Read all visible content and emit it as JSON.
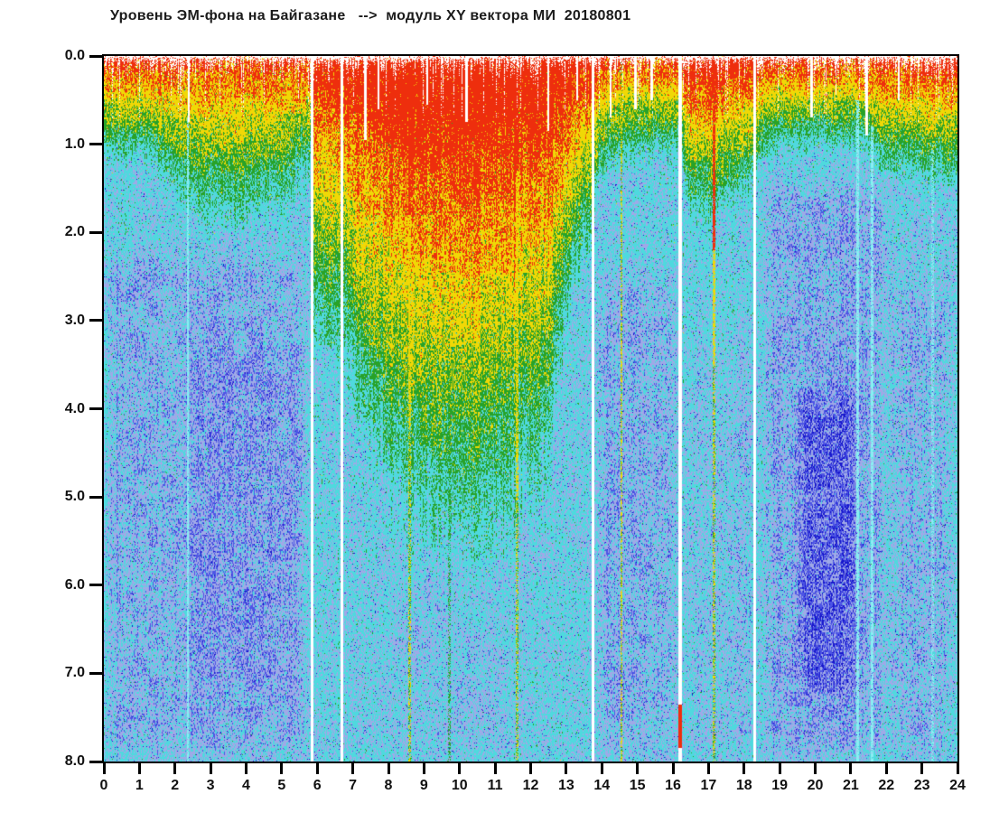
{
  "page": {
    "background": "#ffffff"
  },
  "chart_data": {
    "type": "heatmap",
    "subtype": "spectrogram-scatter",
    "title": "Уровень ЭМ-фона на Байгазане   -->  модуль XY вектора МИ  20180801",
    "xlim": [
      0,
      24
    ],
    "ylim_top": 0.0,
    "ylim_bottom": 8.0,
    "x_ticks": [
      "0",
      "1",
      "2",
      "3",
      "4",
      "5",
      "6",
      "7",
      "8",
      "9",
      "10",
      "11",
      "12",
      "13",
      "14",
      "15",
      "16",
      "17",
      "18",
      "19",
      "20",
      "21",
      "22",
      "23",
      "24"
    ],
    "y_ticks": [
      "0.0",
      "1.0",
      "2.0",
      "3.0",
      "4.0",
      "5.0",
      "6.0",
      "7.0",
      "8.0"
    ],
    "grid": false,
    "legend": "none",
    "palette": {
      "red": "#ee2e0d",
      "yellow": "#f0d806",
      "green": "#28a228",
      "cyan": "#4fd9de",
      "pale_blue": "#9fa9e7",
      "blue": "#4d55e5",
      "dark_blue": "#1717cc",
      "streak_cyan": "#8aeef2",
      "gap_white": "#ffffff"
    },
    "thresholds": {
      "red": 0.8,
      "yellow": 0.62,
      "green": 0.48,
      "cyan": 0.315,
      "pale_blue": 0.2,
      "blue": 0.12
    },
    "background_level": 0.35,
    "activity_profile": {
      "hours": [
        0,
        1,
        2,
        2.6,
        4,
        5.3,
        5.8,
        5.9,
        6.7,
        6.8,
        7.5,
        8.5,
        9.5,
        10.5,
        11.5,
        12.5,
        13.2,
        13.7,
        13.9,
        14.5,
        15.2,
        16.2,
        16.4,
        17.0,
        17.6,
        18.3,
        18.5,
        19.0,
        20.0,
        21.0,
        21.5,
        22.0,
        23.0,
        24.0
      ],
      "surface": [
        0.89,
        0.89,
        0.89,
        0.87,
        0.87,
        0.89,
        0.9,
        0.93,
        0.93,
        0.95,
        0.97,
        1.0,
        1.01,
        1.0,
        1.0,
        0.98,
        0.97,
        0.96,
        0.91,
        0.9,
        0.89,
        0.89,
        0.95,
        0.96,
        0.95,
        0.94,
        0.9,
        0.9,
        0.9,
        0.9,
        0.9,
        0.91,
        0.92,
        0.92
      ],
      "slope": [
        0.43,
        0.43,
        0.34,
        0.26,
        0.26,
        0.32,
        0.4,
        0.17,
        0.16,
        0.16,
        0.13,
        0.12,
        0.115,
        0.11,
        0.115,
        0.13,
        0.22,
        0.26,
        0.38,
        0.42,
        0.45,
        0.45,
        0.33,
        0.31,
        0.34,
        0.36,
        0.45,
        0.5,
        0.5,
        0.5,
        0.46,
        0.4,
        0.37,
        0.38
      ]
    },
    "blue_regions": [
      [
        0.0,
        5.85,
        2.0,
        8.2,
        0.07
      ],
      [
        2.3,
        5.6,
        3.0,
        7.6,
        0.03
      ],
      [
        13.8,
        16.25,
        2.3,
        8.2,
        0.07
      ],
      [
        16.3,
        18.4,
        3.0,
        8.2,
        0.035
      ],
      [
        18.45,
        22.1,
        1.25,
        8.2,
        0.08
      ],
      [
        19.35,
        21.35,
        3.6,
        7.5,
        0.09
      ],
      [
        22.0,
        24.0,
        2.3,
        8.2,
        0.055
      ],
      [
        8.0,
        11.5,
        5.5,
        8.2,
        0.03
      ]
    ],
    "data_gaps_hours": [
      5.85,
      6.7,
      13.75,
      16.2,
      18.3
    ],
    "gap_width_hours": 0.085,
    "top_notches": [
      [
        2.38,
        0.75
      ],
      [
        7.35,
        0.95
      ],
      [
        7.72,
        0.6
      ],
      [
        9.1,
        0.55
      ],
      [
        10.2,
        0.75
      ],
      [
        12.5,
        0.85
      ],
      [
        13.3,
        0.5
      ],
      [
        14.25,
        0.7
      ],
      [
        14.95,
        0.6
      ],
      [
        15.4,
        0.5
      ],
      [
        19.9,
        0.7
      ],
      [
        21.45,
        0.9
      ],
      [
        22.35,
        0.5
      ]
    ],
    "streaks": [
      {
        "t": 2.36,
        "kind": "cyan",
        "dmin": 0.7
      },
      {
        "t": 8.6,
        "kind": "hot",
        "red_to": 1.8,
        "yellow_to": 4.2
      },
      {
        "t": 9.72,
        "kind": "green-dash",
        "dmin": 3.5
      },
      {
        "t": 11.62,
        "kind": "hot",
        "red_to": 1.3,
        "yellow_to": 5.0
      },
      {
        "t": 14.55,
        "kind": "yellow-dash",
        "dmin": 0.4
      },
      {
        "t": 17.15,
        "kind": "hot",
        "red_to": 2.2,
        "yellow_to": 3.5
      },
      {
        "t": 21.2,
        "kind": "cyan",
        "dmin": 0.5
      },
      {
        "t": 21.6,
        "kind": "cyan",
        "dmin": 0.8
      },
      {
        "t": 23.3,
        "kind": "cyan-weak",
        "dmin": 1.0
      }
    ],
    "bottom_mark": {
      "t": 16.2,
      "d0": 7.35,
      "d1": 7.85,
      "color": "red"
    },
    "seed": 20180801
  }
}
